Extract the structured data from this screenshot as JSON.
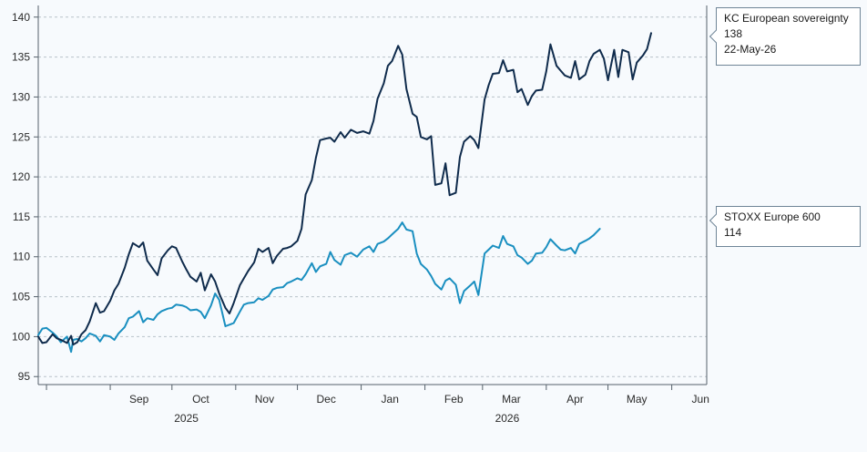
{
  "chart_data": {
    "type": "line",
    "title": "",
    "xlabel": "",
    "ylabel": "",
    "ylim": [
      94,
      141
    ],
    "yticks": [
      95,
      100,
      105,
      110,
      115,
      120,
      125,
      130,
      135,
      140
    ],
    "x_range": [
      "2025-07-28",
      "2026-06-18"
    ],
    "x_month_ticks": [
      {
        "date": "2025-09-01",
        "label": "Sep"
      },
      {
        "date": "2025-10-01",
        "label": "Oct"
      },
      {
        "date": "2025-11-01",
        "label": "Nov"
      },
      {
        "date": "2025-12-01",
        "label": "Dec"
      },
      {
        "date": "2026-01-01",
        "label": "Jan"
      },
      {
        "date": "2026-02-01",
        "label": "Feb"
      },
      {
        "date": "2026-03-01",
        "label": "Mar"
      },
      {
        "date": "2026-04-01",
        "label": "Apr"
      },
      {
        "date": "2026-05-01",
        "label": "May"
      },
      {
        "date": "2026-06-01",
        "label": "Jun"
      }
    ],
    "year_labels": [
      {
        "date": "2025-10-08",
        "label": "2025"
      },
      {
        "date": "2026-03-13",
        "label": "2026"
      }
    ],
    "grid": true,
    "series": [
      {
        "name": "KC European sovereignty",
        "color": "#0f2b4c",
        "tooltip_value": "138",
        "tooltip_date": "22-May-26",
        "points": [
          [
            "2025-07-28",
            100.0
          ],
          [
            "2025-07-30",
            99.2
          ],
          [
            "2025-08-01",
            99.3
          ],
          [
            "2025-08-04",
            100.3
          ],
          [
            "2025-08-06",
            99.8
          ],
          [
            "2025-08-08",
            99.6
          ],
          [
            "2025-08-11",
            99.2
          ],
          [
            "2025-08-13",
            100.1
          ],
          [
            "2025-08-14",
            99.0
          ],
          [
            "2025-08-16",
            99.3
          ],
          [
            "2025-08-18",
            100.3
          ],
          [
            "2025-08-20",
            100.8
          ],
          [
            "2025-08-22",
            101.9
          ],
          [
            "2025-08-25",
            104.2
          ],
          [
            "2025-08-27",
            103.0
          ],
          [
            "2025-08-29",
            103.2
          ],
          [
            "2025-09-01",
            104.5
          ],
          [
            "2025-09-03",
            105.8
          ],
          [
            "2025-09-05",
            106.6
          ],
          [
            "2025-09-08",
            108.6
          ],
          [
            "2025-09-10",
            110.3
          ],
          [
            "2025-09-12",
            111.7
          ],
          [
            "2025-09-15",
            111.2
          ],
          [
            "2025-09-17",
            111.8
          ],
          [
            "2025-09-19",
            109.5
          ],
          [
            "2025-09-22",
            108.4
          ],
          [
            "2025-09-24",
            107.7
          ],
          [
            "2025-09-26",
            109.8
          ],
          [
            "2025-09-29",
            110.8
          ],
          [
            "2025-10-01",
            111.3
          ],
          [
            "2025-10-03",
            111.1
          ],
          [
            "2025-10-06",
            109.4
          ],
          [
            "2025-10-08",
            108.4
          ],
          [
            "2025-10-10",
            107.5
          ],
          [
            "2025-10-13",
            106.9
          ],
          [
            "2025-10-15",
            108.0
          ],
          [
            "2025-10-17",
            105.8
          ],
          [
            "2025-10-20",
            107.8
          ],
          [
            "2025-10-22",
            106.9
          ],
          [
            "2025-10-24",
            105.4
          ],
          [
            "2025-10-27",
            103.6
          ],
          [
            "2025-10-29",
            102.9
          ],
          [
            "2025-10-31",
            104.2
          ],
          [
            "2025-11-03",
            106.4
          ],
          [
            "2025-11-05",
            107.3
          ],
          [
            "2025-11-07",
            108.2
          ],
          [
            "2025-11-10",
            109.3
          ],
          [
            "2025-11-12",
            111.0
          ],
          [
            "2025-11-14",
            110.6
          ],
          [
            "2025-11-17",
            111.1
          ],
          [
            "2025-11-19",
            109.2
          ],
          [
            "2025-11-21",
            110.1
          ],
          [
            "2025-11-24",
            111.0
          ],
          [
            "2025-11-26",
            111.1
          ],
          [
            "2025-11-28",
            111.3
          ],
          [
            "2025-12-01",
            112.0
          ],
          [
            "2025-12-03",
            113.5
          ],
          [
            "2025-12-05",
            117.8
          ],
          [
            "2025-12-08",
            119.6
          ],
          [
            "2025-12-10",
            122.4
          ],
          [
            "2025-12-12",
            124.6
          ],
          [
            "2025-12-15",
            124.8
          ],
          [
            "2025-12-17",
            124.9
          ],
          [
            "2025-12-19",
            124.4
          ],
          [
            "2025-12-22",
            125.6
          ],
          [
            "2025-12-24",
            124.9
          ],
          [
            "2025-12-27",
            125.9
          ],
          [
            "2025-12-30",
            125.5
          ],
          [
            "2026-01-02",
            125.7
          ],
          [
            "2026-01-05",
            125.4
          ],
          [
            "2026-01-07",
            127.0
          ],
          [
            "2026-01-09",
            129.8
          ],
          [
            "2026-01-12",
            131.7
          ],
          [
            "2026-01-14",
            133.9
          ],
          [
            "2026-01-16",
            134.5
          ],
          [
            "2026-01-19",
            136.4
          ],
          [
            "2026-01-21",
            135.3
          ],
          [
            "2026-01-23",
            131.0
          ],
          [
            "2026-01-26",
            127.9
          ],
          [
            "2026-01-28",
            127.5
          ],
          [
            "2026-01-30",
            125.0
          ],
          [
            "2026-02-02",
            124.7
          ],
          [
            "2026-02-04",
            125.1
          ],
          [
            "2026-02-06",
            119.0
          ],
          [
            "2026-02-09",
            119.2
          ],
          [
            "2026-02-11",
            121.7
          ],
          [
            "2026-02-13",
            117.7
          ],
          [
            "2026-02-16",
            118.0
          ],
          [
            "2026-02-18",
            122.5
          ],
          [
            "2026-02-20",
            124.4
          ],
          [
            "2026-02-23",
            125.1
          ],
          [
            "2026-02-25",
            124.6
          ],
          [
            "2026-02-27",
            123.6
          ],
          [
            "2026-03-02",
            129.7
          ],
          [
            "2026-03-04",
            131.5
          ],
          [
            "2026-03-06",
            132.9
          ],
          [
            "2026-03-09",
            133.0
          ],
          [
            "2026-03-11",
            134.6
          ],
          [
            "2026-03-13",
            133.2
          ],
          [
            "2026-03-16",
            133.4
          ],
          [
            "2026-03-18",
            130.6
          ],
          [
            "2026-03-20",
            131.0
          ],
          [
            "2026-03-23",
            129.0
          ],
          [
            "2026-03-25",
            130.1
          ],
          [
            "2026-03-27",
            130.8
          ],
          [
            "2026-03-30",
            130.9
          ],
          [
            "2026-04-01",
            133.2
          ],
          [
            "2026-04-03",
            136.6
          ],
          [
            "2026-04-06",
            133.9
          ],
          [
            "2026-04-08",
            133.3
          ],
          [
            "2026-04-10",
            132.7
          ],
          [
            "2026-04-13",
            132.4
          ],
          [
            "2026-04-15",
            134.5
          ],
          [
            "2026-04-17",
            132.2
          ],
          [
            "2026-04-20",
            132.8
          ],
          [
            "2026-04-22",
            134.5
          ],
          [
            "2026-04-24",
            135.4
          ],
          [
            "2026-04-27",
            135.9
          ],
          [
            "2026-04-29",
            134.8
          ],
          [
            "2026-05-01",
            132.1
          ],
          [
            "2026-05-04",
            135.9
          ],
          [
            "2026-05-06",
            132.5
          ],
          [
            "2026-05-08",
            135.9
          ],
          [
            "2026-05-11",
            135.6
          ],
          [
            "2026-05-13",
            132.2
          ],
          [
            "2026-05-15",
            134.3
          ],
          [
            "2026-05-18",
            135.2
          ],
          [
            "2026-05-20",
            136.0
          ],
          [
            "2026-05-22",
            138.0
          ]
        ]
      },
      {
        "name": "STOXX Europe 600",
        "color": "#1a8fc0",
        "tooltip_value": "114",
        "points": [
          [
            "2025-07-28",
            100.2
          ],
          [
            "2025-07-30",
            101.0
          ],
          [
            "2025-08-01",
            101.1
          ],
          [
            "2025-08-04",
            100.5
          ],
          [
            "2025-08-06",
            100.0
          ],
          [
            "2025-08-08",
            99.3
          ],
          [
            "2025-08-11",
            100.0
          ],
          [
            "2025-08-13",
            98.1
          ],
          [
            "2025-08-14",
            99.6
          ],
          [
            "2025-08-16",
            99.7
          ],
          [
            "2025-08-18",
            99.4
          ],
          [
            "2025-08-20",
            99.8
          ],
          [
            "2025-08-22",
            100.4
          ],
          [
            "2025-08-25",
            100.1
          ],
          [
            "2025-08-27",
            99.4
          ],
          [
            "2025-08-29",
            100.2
          ],
          [
            "2025-09-01",
            100.0
          ],
          [
            "2025-09-03",
            99.6
          ],
          [
            "2025-09-05",
            100.4
          ],
          [
            "2025-09-08",
            101.2
          ],
          [
            "2025-09-10",
            102.3
          ],
          [
            "2025-09-12",
            102.5
          ],
          [
            "2025-09-15",
            103.2
          ],
          [
            "2025-09-17",
            101.8
          ],
          [
            "2025-09-19",
            102.3
          ],
          [
            "2025-09-22",
            102.1
          ],
          [
            "2025-09-24",
            102.8
          ],
          [
            "2025-09-26",
            103.2
          ],
          [
            "2025-09-29",
            103.5
          ],
          [
            "2025-10-01",
            103.6
          ],
          [
            "2025-10-03",
            104.0
          ],
          [
            "2025-10-06",
            103.9
          ],
          [
            "2025-10-08",
            103.7
          ],
          [
            "2025-10-10",
            103.3
          ],
          [
            "2025-10-13",
            103.4
          ],
          [
            "2025-10-15",
            103.1
          ],
          [
            "2025-10-17",
            102.3
          ],
          [
            "2025-10-20",
            103.9
          ],
          [
            "2025-10-22",
            105.4
          ],
          [
            "2025-10-24",
            104.6
          ],
          [
            "2025-10-27",
            101.3
          ],
          [
            "2025-10-29",
            101.5
          ],
          [
            "2025-10-31",
            101.7
          ],
          [
            "2025-11-03",
            103.1
          ],
          [
            "2025-11-05",
            104.0
          ],
          [
            "2025-11-07",
            104.2
          ],
          [
            "2025-11-10",
            104.3
          ],
          [
            "2025-11-12",
            104.8
          ],
          [
            "2025-11-14",
            104.6
          ],
          [
            "2025-11-17",
            105.1
          ],
          [
            "2025-11-19",
            105.9
          ],
          [
            "2025-11-21",
            106.1
          ],
          [
            "2025-11-24",
            106.2
          ],
          [
            "2025-11-26",
            106.7
          ],
          [
            "2025-11-28",
            106.9
          ],
          [
            "2025-12-01",
            107.3
          ],
          [
            "2025-12-03",
            107.1
          ],
          [
            "2025-12-05",
            107.8
          ],
          [
            "2025-12-08",
            109.2
          ],
          [
            "2025-12-10",
            108.1
          ],
          [
            "2025-12-12",
            108.8
          ],
          [
            "2025-12-15",
            109.1
          ],
          [
            "2025-12-17",
            110.6
          ],
          [
            "2025-12-19",
            109.6
          ],
          [
            "2025-12-22",
            109.0
          ],
          [
            "2025-12-24",
            110.2
          ],
          [
            "2025-12-27",
            110.5
          ],
          [
            "2025-12-30",
            110.0
          ],
          [
            "2026-01-02",
            110.9
          ],
          [
            "2026-01-05",
            111.3
          ],
          [
            "2026-01-07",
            110.6
          ],
          [
            "2026-01-09",
            111.6
          ],
          [
            "2026-01-12",
            111.9
          ],
          [
            "2026-01-14",
            112.3
          ],
          [
            "2026-01-16",
            112.8
          ],
          [
            "2026-01-19",
            113.5
          ],
          [
            "2026-01-21",
            114.3
          ],
          [
            "2026-01-23",
            113.4
          ],
          [
            "2026-01-26",
            113.2
          ],
          [
            "2026-01-28",
            110.4
          ],
          [
            "2026-01-30",
            109.1
          ],
          [
            "2026-02-02",
            108.4
          ],
          [
            "2026-02-04",
            107.6
          ],
          [
            "2026-02-06",
            106.6
          ],
          [
            "2026-02-09",
            105.9
          ],
          [
            "2026-02-11",
            107.0
          ],
          [
            "2026-02-13",
            107.3
          ],
          [
            "2026-02-16",
            106.5
          ],
          [
            "2026-02-18",
            104.2
          ],
          [
            "2026-02-20",
            105.7
          ],
          [
            "2026-02-23",
            106.4
          ],
          [
            "2026-02-25",
            106.9
          ],
          [
            "2026-02-27",
            105.2
          ],
          [
            "2026-03-02",
            110.4
          ],
          [
            "2026-03-04",
            110.9
          ],
          [
            "2026-03-06",
            111.4
          ],
          [
            "2026-03-09",
            111.1
          ],
          [
            "2026-03-11",
            112.6
          ],
          [
            "2026-03-13",
            111.6
          ],
          [
            "2026-03-16",
            111.3
          ],
          [
            "2026-03-18",
            110.2
          ],
          [
            "2026-03-20",
            109.9
          ],
          [
            "2026-03-23",
            109.1
          ],
          [
            "2026-03-25",
            109.5
          ],
          [
            "2026-03-27",
            110.4
          ],
          [
            "2026-03-30",
            110.5
          ],
          [
            "2026-04-01",
            111.2
          ],
          [
            "2026-04-03",
            112.2
          ],
          [
            "2026-04-06",
            111.4
          ],
          [
            "2026-04-08",
            110.9
          ],
          [
            "2026-04-10",
            110.8
          ],
          [
            "2026-04-13",
            111.1
          ],
          [
            "2026-04-15",
            110.4
          ],
          [
            "2026-04-17",
            111.6
          ],
          [
            "2026-04-20",
            112.0
          ],
          [
            "2026-04-22",
            112.3
          ],
          [
            "2026-04-24",
            112.7
          ],
          [
            "2026-04-27",
            113.5
          ]
        ]
      }
    ]
  }
}
